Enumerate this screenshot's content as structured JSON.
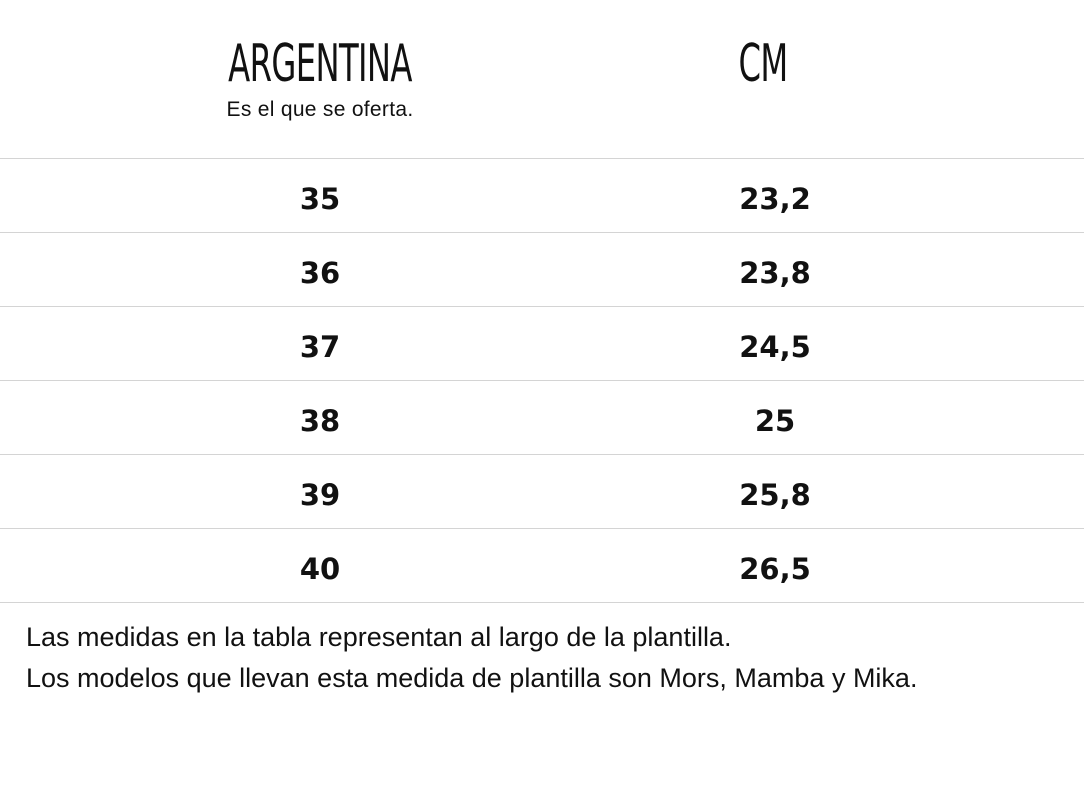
{
  "header": {
    "left_title": "ARGENTINA",
    "left_subtitle": "Es el que se oferta.",
    "right_title": "CM"
  },
  "rows": [
    {
      "size": "35",
      "cm": "23,2"
    },
    {
      "size": "36",
      "cm": "23,8"
    },
    {
      "size": "37",
      "cm": "24,5"
    },
    {
      "size": "38",
      "cm": "25"
    },
    {
      "size": "39",
      "cm": "25,8"
    },
    {
      "size": "40",
      "cm": "26,5"
    }
  ],
  "note": {
    "line1": "Las medidas en la tabla representan al largo de la plantilla.",
    "line2": "Los modelos que llevan esta medida de plantilla son Mors, Mamba y Mika."
  }
}
